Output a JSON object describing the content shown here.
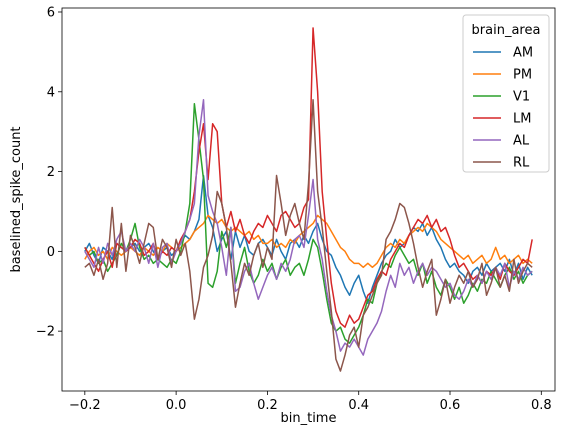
{
  "chart_data": {
    "type": "line",
    "title": "",
    "xlabel": "bin_time",
    "ylabel": "baselined_spike_count",
    "xlim": [
      -0.25,
      0.83
    ],
    "ylim": [
      -3.5,
      6.1
    ],
    "xticks": [
      -0.2,
      0.0,
      0.2,
      0.4,
      0.6,
      0.8
    ],
    "xtick_labels": [
      "−0.2",
      "0.0",
      "0.2",
      "0.4",
      "0.6",
      "0.8"
    ],
    "yticks": [
      -2,
      0,
      2,
      4,
      6
    ],
    "ytick_labels": [
      "−2",
      "0",
      "2",
      "4",
      "6"
    ],
    "grid": false,
    "legend": {
      "title": "brain_area",
      "placement": "top-right"
    },
    "x": [
      -0.2,
      -0.19,
      -0.18,
      -0.17,
      -0.16,
      -0.15,
      -0.14,
      -0.13,
      -0.12,
      -0.11,
      -0.1,
      -0.09,
      -0.08,
      -0.07,
      -0.06,
      -0.05,
      -0.04,
      -0.03,
      -0.02,
      -0.01,
      0.0,
      0.01,
      0.02,
      0.03,
      0.04,
      0.05,
      0.06,
      0.07,
      0.08,
      0.09,
      0.1,
      0.11,
      0.12,
      0.13,
      0.14,
      0.15,
      0.16,
      0.17,
      0.18,
      0.19,
      0.2,
      0.21,
      0.22,
      0.23,
      0.24,
      0.25,
      0.26,
      0.27,
      0.28,
      0.29,
      0.3,
      0.31,
      0.32,
      0.33,
      0.34,
      0.35,
      0.36,
      0.37,
      0.38,
      0.39,
      0.4,
      0.41,
      0.42,
      0.43,
      0.44,
      0.45,
      0.46,
      0.47,
      0.48,
      0.49,
      0.5,
      0.51,
      0.52,
      0.53,
      0.54,
      0.55,
      0.56,
      0.57,
      0.58,
      0.59,
      0.6,
      0.61,
      0.62,
      0.63,
      0.64,
      0.65,
      0.66,
      0.67,
      0.68,
      0.69,
      0.7,
      0.71,
      0.72,
      0.73,
      0.74,
      0.75,
      0.76,
      0.77,
      0.78
    ],
    "series": [
      {
        "name": "AM",
        "color": "#1f77b4",
        "values": [
          0.0,
          0.2,
          -0.1,
          -0.3,
          0.1,
          0.0,
          -0.2,
          0.2,
          0.1,
          0.0,
          0.1,
          0.2,
          0.0,
          0.1,
          0.2,
          0.0,
          -0.2,
          0.0,
          0.1,
          -0.1,
          0.0,
          0.2,
          0.4,
          0.3,
          0.5,
          0.8,
          1.9,
          0.9,
          0.6,
          0.0,
          0.3,
          0.5,
          -0.2,
          0.5,
          0.1,
          0.4,
          0.0,
          -0.1,
          0.2,
          0.3,
          0.1,
          -0.1,
          0.3,
          0.0,
          -0.2,
          0.2,
          0.3,
          0.1,
          0.4,
          0.2,
          0.5,
          0.7,
          0.3,
          0.0,
          -0.1,
          -0.4,
          -0.6,
          -0.9,
          -1.1,
          -0.8,
          -0.6,
          -1.0,
          -1.3,
          -0.9,
          -0.6,
          -0.3,
          -0.1,
          0.0,
          0.3,
          0.1,
          0.2,
          0.4,
          0.6,
          0.5,
          0.7,
          0.4,
          0.6,
          0.3,
          0.1,
          -0.2,
          -0.4,
          -0.3,
          -0.5,
          -0.6,
          -0.8,
          -0.5,
          -0.4,
          -0.6,
          -0.3,
          -0.5,
          -0.4,
          -0.3,
          -0.5,
          -0.2,
          -0.6,
          -0.3,
          -0.7,
          -0.4,
          -0.6
        ]
      },
      {
        "name": "PM",
        "color": "#ff7f0e",
        "values": [
          -0.2,
          0.0,
          0.1,
          -0.1,
          0.0,
          -0.2,
          0.1,
          0.0,
          -0.1,
          0.0,
          0.1,
          0.0,
          -0.1,
          0.1,
          0.0,
          -0.1,
          0.1,
          0.0,
          0.2,
          0.1,
          0.0,
          0.1,
          0.2,
          0.3,
          0.5,
          0.6,
          0.7,
          0.9,
          0.8,
          0.7,
          0.8,
          0.6,
          0.5,
          0.6,
          0.5,
          0.4,
          0.5,
          0.3,
          0.4,
          0.2,
          0.2,
          0.3,
          0.1,
          0.2,
          0.1,
          0.3,
          0.2,
          0.4,
          0.5,
          0.6,
          0.7,
          0.9,
          0.8,
          0.7,
          0.5,
          0.3,
          0.1,
          0.0,
          -0.2,
          -0.3,
          -0.3,
          -0.4,
          -0.3,
          -0.4,
          -0.3,
          -0.1,
          0.1,
          0.2,
          0.1,
          0.3,
          0.2,
          0.4,
          0.5,
          0.6,
          0.5,
          0.7,
          0.6,
          0.5,
          0.3,
          0.2,
          0.1,
          0.0,
          -0.1,
          -0.2,
          -0.1,
          -0.3,
          -0.2,
          -0.1,
          -0.3,
          -0.2,
          0.1,
          -0.2,
          -0.1,
          -0.3,
          -0.2,
          -0.1,
          -0.3,
          -0.2,
          -0.3
        ]
      },
      {
        "name": "V1",
        "color": "#2ca02c",
        "values": [
          0.1,
          -0.1,
          0.0,
          -0.3,
          -0.2,
          -0.5,
          -0.3,
          -0.1,
          0.2,
          0.0,
          0.3,
          0.7,
          0.1,
          -0.2,
          -0.1,
          -0.3,
          -0.2,
          -0.3,
          -0.4,
          -0.2,
          -0.3,
          0.0,
          0.5,
          1.2,
          3.7,
          2.8,
          1.8,
          -0.8,
          -0.9,
          -0.5,
          0.5,
          0.1,
          0.6,
          -0.8,
          -0.3,
          0.1,
          -0.5,
          -0.8,
          -0.6,
          -0.2,
          -0.5,
          -0.3,
          -0.7,
          -0.4,
          -0.2,
          -0.6,
          -0.4,
          -0.3,
          -0.6,
          -0.2,
          0.3,
          0.1,
          -0.5,
          -1.2,
          -1.8,
          -2.0,
          -1.9,
          -2.2,
          -2.3,
          -2.1,
          -1.9,
          -1.6,
          -1.2,
          -1.3,
          -0.8,
          -0.5,
          -0.3,
          -0.4,
          -0.1,
          0.1,
          -0.1,
          -0.3,
          -0.2,
          -0.6,
          -0.3,
          -0.8,
          -0.5,
          -0.9,
          -1.1,
          -0.7,
          -0.9,
          -1.2,
          -0.9,
          -1.3,
          -1.1,
          -0.8,
          -1.0,
          -0.7,
          -0.8,
          -0.5,
          -0.7,
          -0.9,
          -0.6,
          -0.4,
          -0.7,
          -0.5,
          -0.8,
          -0.6,
          -0.5
        ]
      },
      {
        "name": "LM",
        "color": "#d62728",
        "values": [
          0.1,
          -0.1,
          -0.3,
          -0.5,
          -0.2,
          0.0,
          -0.4,
          0.2,
          0.1,
          0.0,
          0.1,
          0.3,
          0.2,
          -0.1,
          0.0,
          0.2,
          -0.2,
          0.0,
          -0.1,
          0.1,
          0.0,
          0.3,
          0.5,
          0.8,
          1.5,
          2.5,
          3.2,
          1.8,
          3.2,
          3.0,
          1.2,
          0.6,
          1.0,
          0.5,
          0.8,
          0.4,
          0.2,
          0.5,
          0.7,
          0.6,
          0.9,
          0.7,
          0.5,
          0.9,
          1.0,
          0.8,
          0.6,
          0.7,
          1.1,
          1.3,
          5.6,
          4.0,
          1.5,
          0.3,
          -0.8,
          -1.5,
          -1.8,
          -1.9,
          -1.6,
          -1.8,
          -1.7,
          -1.4,
          -1.1,
          -1.0,
          -0.7,
          -0.5,
          -0.6,
          -0.2,
          0.0,
          0.2,
          0.1,
          0.4,
          0.6,
          0.8,
          0.7,
          0.9,
          0.6,
          0.8,
          0.5,
          0.6,
          0.3,
          -0.1,
          -0.4,
          -0.3,
          -0.5,
          -0.7,
          -0.6,
          -0.8,
          -0.5,
          -0.6,
          -0.4,
          -0.7,
          -0.3,
          -0.5,
          -0.6,
          -0.4,
          -0.2,
          -0.3,
          0.3
        ]
      },
      {
        "name": "AL",
        "color": "#9467bd",
        "values": [
          0.0,
          -0.2,
          -0.4,
          0.1,
          -0.3,
          0.2,
          -0.1,
          0.3,
          0.5,
          0.0,
          0.2,
          0.0,
          0.3,
          0.1,
          -0.3,
          0.2,
          -0.4,
          0.1,
          0.2,
          -0.3,
          0.0,
          0.2,
          0.5,
          0.8,
          1.2,
          2.9,
          3.8,
          1.4,
          1.0,
          0.7,
          0.1,
          -0.6,
          0.6,
          -1.0,
          -0.9,
          -0.5,
          -0.3,
          -0.8,
          -1.2,
          -0.9,
          -0.6,
          -0.4,
          -0.7,
          -0.3,
          -0.5,
          -0.2,
          0.3,
          0.4,
          0.1,
          0.9,
          1.8,
          0.3,
          -0.2,
          -1.0,
          -1.6,
          -2.0,
          -2.5,
          -2.3,
          -2.4,
          -2.2,
          -2.4,
          -2.6,
          -2.2,
          -2.0,
          -1.8,
          -1.5,
          -1.0,
          -0.6,
          -0.9,
          -0.3,
          -0.6,
          -0.4,
          -0.8,
          -0.5,
          -0.3,
          -0.6,
          -0.4,
          -0.5,
          -0.7,
          -0.9,
          -0.8,
          -1.1,
          -1.2,
          -1.0,
          -0.7,
          -0.9,
          -0.6,
          -0.8,
          -0.5,
          -0.7,
          -0.4,
          -0.6,
          -0.3,
          -0.9,
          -0.5,
          -0.7,
          -0.4,
          -0.6,
          -0.5
        ]
      },
      {
        "name": "RL",
        "color": "#8c564b",
        "values": [
          -0.4,
          -0.3,
          -0.6,
          -0.2,
          -0.7,
          -0.3,
          1.1,
          -0.4,
          0.7,
          -0.5,
          0.4,
          0.1,
          -0.3,
          0.2,
          0.7,
          0.6,
          -0.2,
          0.3,
          0.1,
          -0.4,
          0.3,
          -0.1,
          0.2,
          -0.5,
          -1.7,
          -1.2,
          -0.4,
          -0.1,
          0.4,
          1.5,
          1.2,
          0.6,
          -0.3,
          -1.4,
          -0.8,
          -0.3,
          -0.6,
          -0.1,
          0.2,
          -0.4,
          0.1,
          -0.2,
          1.9,
          1.2,
          0.4,
          0.9,
          1.2,
          0.7,
          0.3,
          1.7,
          3.8,
          1.5,
          0.6,
          -0.5,
          -1.5,
          -2.7,
          -3.0,
          -2.6,
          -2.1,
          -1.9,
          -2.4,
          -1.6,
          -1.4,
          -1.1,
          -0.8,
          -0.6,
          0.3,
          0.5,
          0.8,
          1.2,
          1.1,
          0.7,
          0.2,
          -0.4,
          -0.9,
          -0.5,
          -0.2,
          -1.6,
          -1.2,
          -0.7,
          -1.3,
          -0.9,
          -0.6,
          -0.8,
          -0.5,
          -0.9,
          -0.7,
          -0.3,
          -1.1,
          -0.8,
          -0.4,
          -0.9,
          -0.6,
          -1.0,
          -0.2,
          -0.8,
          -0.5,
          -0.3,
          -0.4
        ]
      }
    ]
  }
}
